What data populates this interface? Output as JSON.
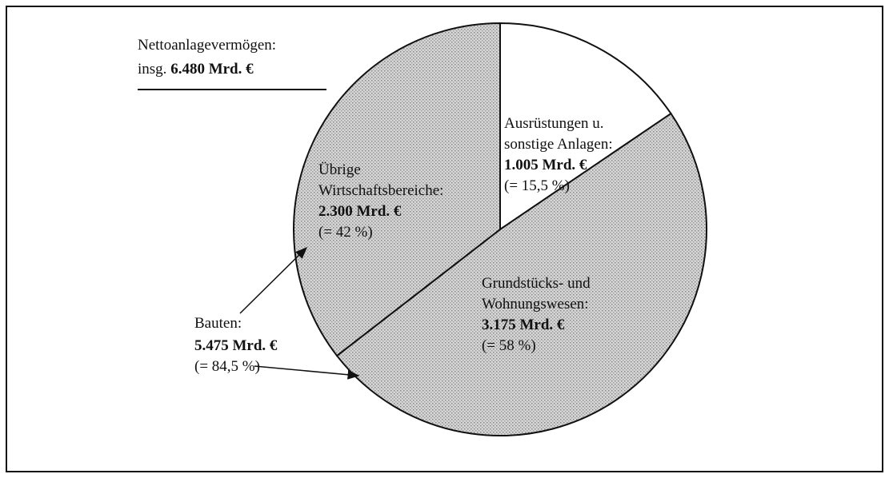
{
  "chart_data": {
    "type": "pie",
    "title": [
      "Nettoanlagevermögen:",
      "insg."
    ],
    "total": 6480,
    "total_label": "6.480 Mrd. €",
    "categories": [
      [
        "Ausrüstungen u.",
        "sonstige Anlagen:"
      ],
      [
        "Grundstücks- und",
        "Wohnungswesen:"
      ],
      [
        "Übrige",
        "Wirtschaftsbereiche:"
      ]
    ],
    "values": [
      1005,
      3175,
      2300
    ],
    "value_labels": [
      "1.005 Mrd. €",
      "3.175 Mrd. €",
      "2.300 Mrd. €"
    ],
    "share_labels": [
      "(= 15,5 %)",
      "(= 58 %)",
      "(= 42 %)"
    ],
    "colors": [
      "#ffffff",
      "#cdcdcd",
      "#cdcdcd"
    ],
    "group": {
      "label": "Bauten:",
      "value": 5475,
      "value_label": "5.475 Mrd. €",
      "share_label": "(= 84,5 %)"
    }
  }
}
